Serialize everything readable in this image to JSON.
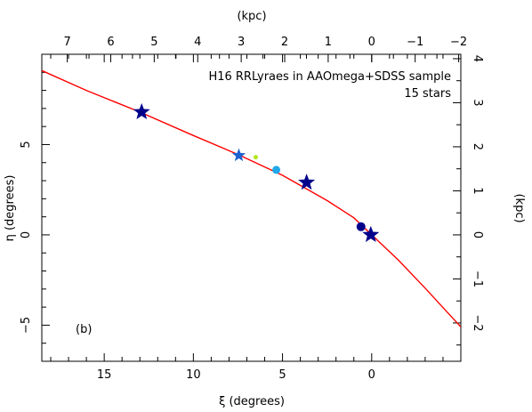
{
  "chart_data": {
    "type": "scatter",
    "annotation_lines": [
      "H16 RRLyraes in AAOmega+SDSS sample",
      "15 stars"
    ],
    "panel_label": "(b)",
    "xlabel": "ξ (degrees)",
    "ylabel": "η (degrees)",
    "top_label": "(kpc)",
    "right_label": "(kpc)",
    "xlim": [
      18.5,
      -5.0
    ],
    "ylim": [
      -7.0,
      10.0
    ],
    "x_ticks": [
      15,
      10,
      5,
      0
    ],
    "y_ticks": [
      -5,
      0,
      5
    ],
    "top_ticks": [
      7,
      6,
      5,
      4,
      3,
      2,
      1,
      0,
      -1,
      -2
    ],
    "right_ticks": [
      -2,
      -1,
      0,
      1,
      2,
      3,
      4
    ],
    "top_axis_kpc_per_degree": 0.41,
    "right_axis_kpc_per_degree": 0.41,
    "curve": {
      "color": "#ff0000",
      "x": [
        18.5,
        16,
        13,
        10,
        7.5,
        5,
        2.5,
        1,
        0,
        -1.5,
        -3,
        -5
      ],
      "y": [
        9.1,
        8.0,
        6.8,
        5.5,
        4.45,
        3.3,
        1.9,
        0.95,
        0.0,
        -1.4,
        -2.95,
        -5.1
      ]
    },
    "series": [
      {
        "marker": "star",
        "color": "#00008b",
        "x": [
          12.9,
          3.65,
          0.05
        ],
        "y": [
          6.8,
          2.9,
          0.0
        ],
        "size": 10
      },
      {
        "marker": "star",
        "color": "#1e62cf",
        "x": [
          7.45
        ],
        "y": [
          4.4
        ],
        "size": 8
      },
      {
        "marker": "circle",
        "color": "#00008b",
        "x": [
          0.6
        ],
        "y": [
          0.45
        ],
        "size": 5
      },
      {
        "marker": "circle",
        "color": "#20a8e8",
        "x": [
          5.35
        ],
        "y": [
          3.6
        ],
        "size": 4.5
      },
      {
        "marker": "circle",
        "color": "#b5e61d",
        "x": [
          6.5
        ],
        "y": [
          4.3
        ],
        "size": 2.5
      }
    ]
  }
}
